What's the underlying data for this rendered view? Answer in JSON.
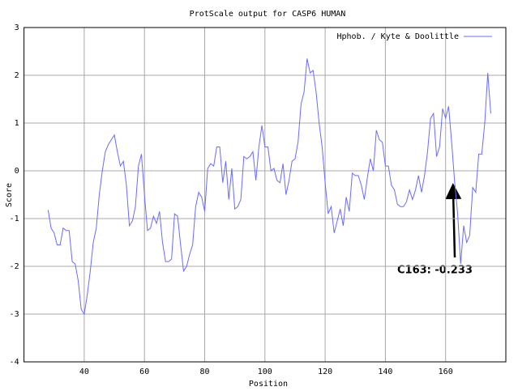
{
  "chart_data": {
    "type": "line",
    "title": "ProtScale output for CASP6 HUMAN",
    "x_label": "Position",
    "y_label": "Score",
    "x": [
      28,
      29,
      30,
      31,
      32,
      33,
      34,
      35,
      36,
      37,
      38,
      39,
      40,
      41,
      42,
      43,
      44,
      45,
      46,
      47,
      48,
      49,
      50,
      51,
      52,
      53,
      54,
      55,
      56,
      57,
      58,
      59,
      60,
      61,
      62,
      63,
      64,
      65,
      66,
      67,
      68,
      69,
      70,
      71,
      72,
      73,
      74,
      75,
      76,
      77,
      78,
      79,
      80,
      81,
      82,
      83,
      84,
      85,
      86,
      87,
      88,
      89,
      90,
      91,
      92,
      93,
      94,
      95,
      96,
      97,
      98,
      99,
      100,
      101,
      102,
      103,
      104,
      105,
      106,
      107,
      108,
      109,
      110,
      111,
      112,
      113,
      114,
      115,
      116,
      117,
      118,
      119,
      120,
      121,
      122,
      123,
      124,
      125,
      126,
      127,
      128,
      129,
      130,
      131,
      132,
      133,
      134,
      135,
      136,
      137,
      138,
      139,
      140,
      141,
      142,
      143,
      144,
      145,
      146,
      147,
      148,
      149,
      150,
      151,
      152,
      153,
      154,
      155,
      156,
      157,
      158,
      159,
      160,
      161,
      162,
      163,
      164,
      165,
      166,
      167,
      168,
      169,
      170,
      171,
      172,
      173,
      174,
      175
    ],
    "series": [
      {
        "name": "Hphob. / Kyte & Doolittle",
        "color": "#6b6bff",
        "values": [
          -0.82,
          -1.2,
          -1.3,
          -1.55,
          -1.55,
          -1.2,
          -1.25,
          -1.25,
          -1.9,
          -1.95,
          -2.3,
          -2.9,
          -3.0,
          -2.6,
          -2.1,
          -1.5,
          -1.2,
          -0.5,
          0.0,
          0.4,
          0.55,
          0.65,
          0.75,
          0.4,
          0.1,
          0.2,
          -0.3,
          -1.15,
          -1.05,
          -0.75,
          0.1,
          0.35,
          -0.5,
          -1.25,
          -1.2,
          -0.95,
          -1.1,
          -0.85,
          -1.5,
          -1.9,
          -1.9,
          -1.85,
          -0.9,
          -0.95,
          -1.55,
          -2.1,
          -2.0,
          -1.75,
          -1.55,
          -0.75,
          -0.45,
          -0.55,
          -0.85,
          0.05,
          0.15,
          0.1,
          0.5,
          0.5,
          -0.25,
          0.2,
          -0.6,
          0.05,
          -0.8,
          -0.75,
          -0.6,
          0.3,
          0.25,
          0.3,
          0.4,
          -0.2,
          0.5,
          0.95,
          0.5,
          0.5,
          0.0,
          0.05,
          -0.2,
          -0.25,
          0.15,
          -0.5,
          -0.2,
          0.2,
          0.25,
          0.6,
          1.4,
          1.65,
          2.35,
          2.05,
          2.1,
          1.65,
          1.0,
          0.5,
          -0.25,
          -0.9,
          -0.75,
          -1.3,
          -1.05,
          -0.8,
          -1.15,
          -0.55,
          -0.85,
          -0.05,
          -0.1,
          -0.1,
          -0.3,
          -0.6,
          -0.15,
          0.25,
          0.0,
          0.85,
          0.65,
          0.6,
          0.1,
          0.1,
          -0.3,
          -0.4,
          -0.7,
          -0.75,
          -0.75,
          -0.65,
          -0.4,
          -0.6,
          -0.4,
          -0.1,
          -0.45,
          -0.1,
          0.4,
          1.1,
          1.2,
          0.3,
          0.5,
          1.3,
          1.1,
          1.35,
          0.6,
          -0.233,
          -0.9,
          -1.95,
          -1.15,
          -1.5,
          -1.35,
          -0.35,
          -0.45,
          0.35,
          0.35,
          1.0,
          2.05,
          1.2
        ]
      }
    ],
    "xlim": [
      20,
      180
    ],
    "xticks": [
      40,
      60,
      80,
      100,
      120,
      140,
      160
    ],
    "ylim": [
      -4,
      3
    ],
    "yticks": [
      -4,
      -3,
      -2,
      -1,
      0,
      1,
      2,
      3
    ],
    "grid": true,
    "legend": "top-right",
    "annotations": [
      {
        "text": "C163: -0.233"
      }
    ]
  }
}
